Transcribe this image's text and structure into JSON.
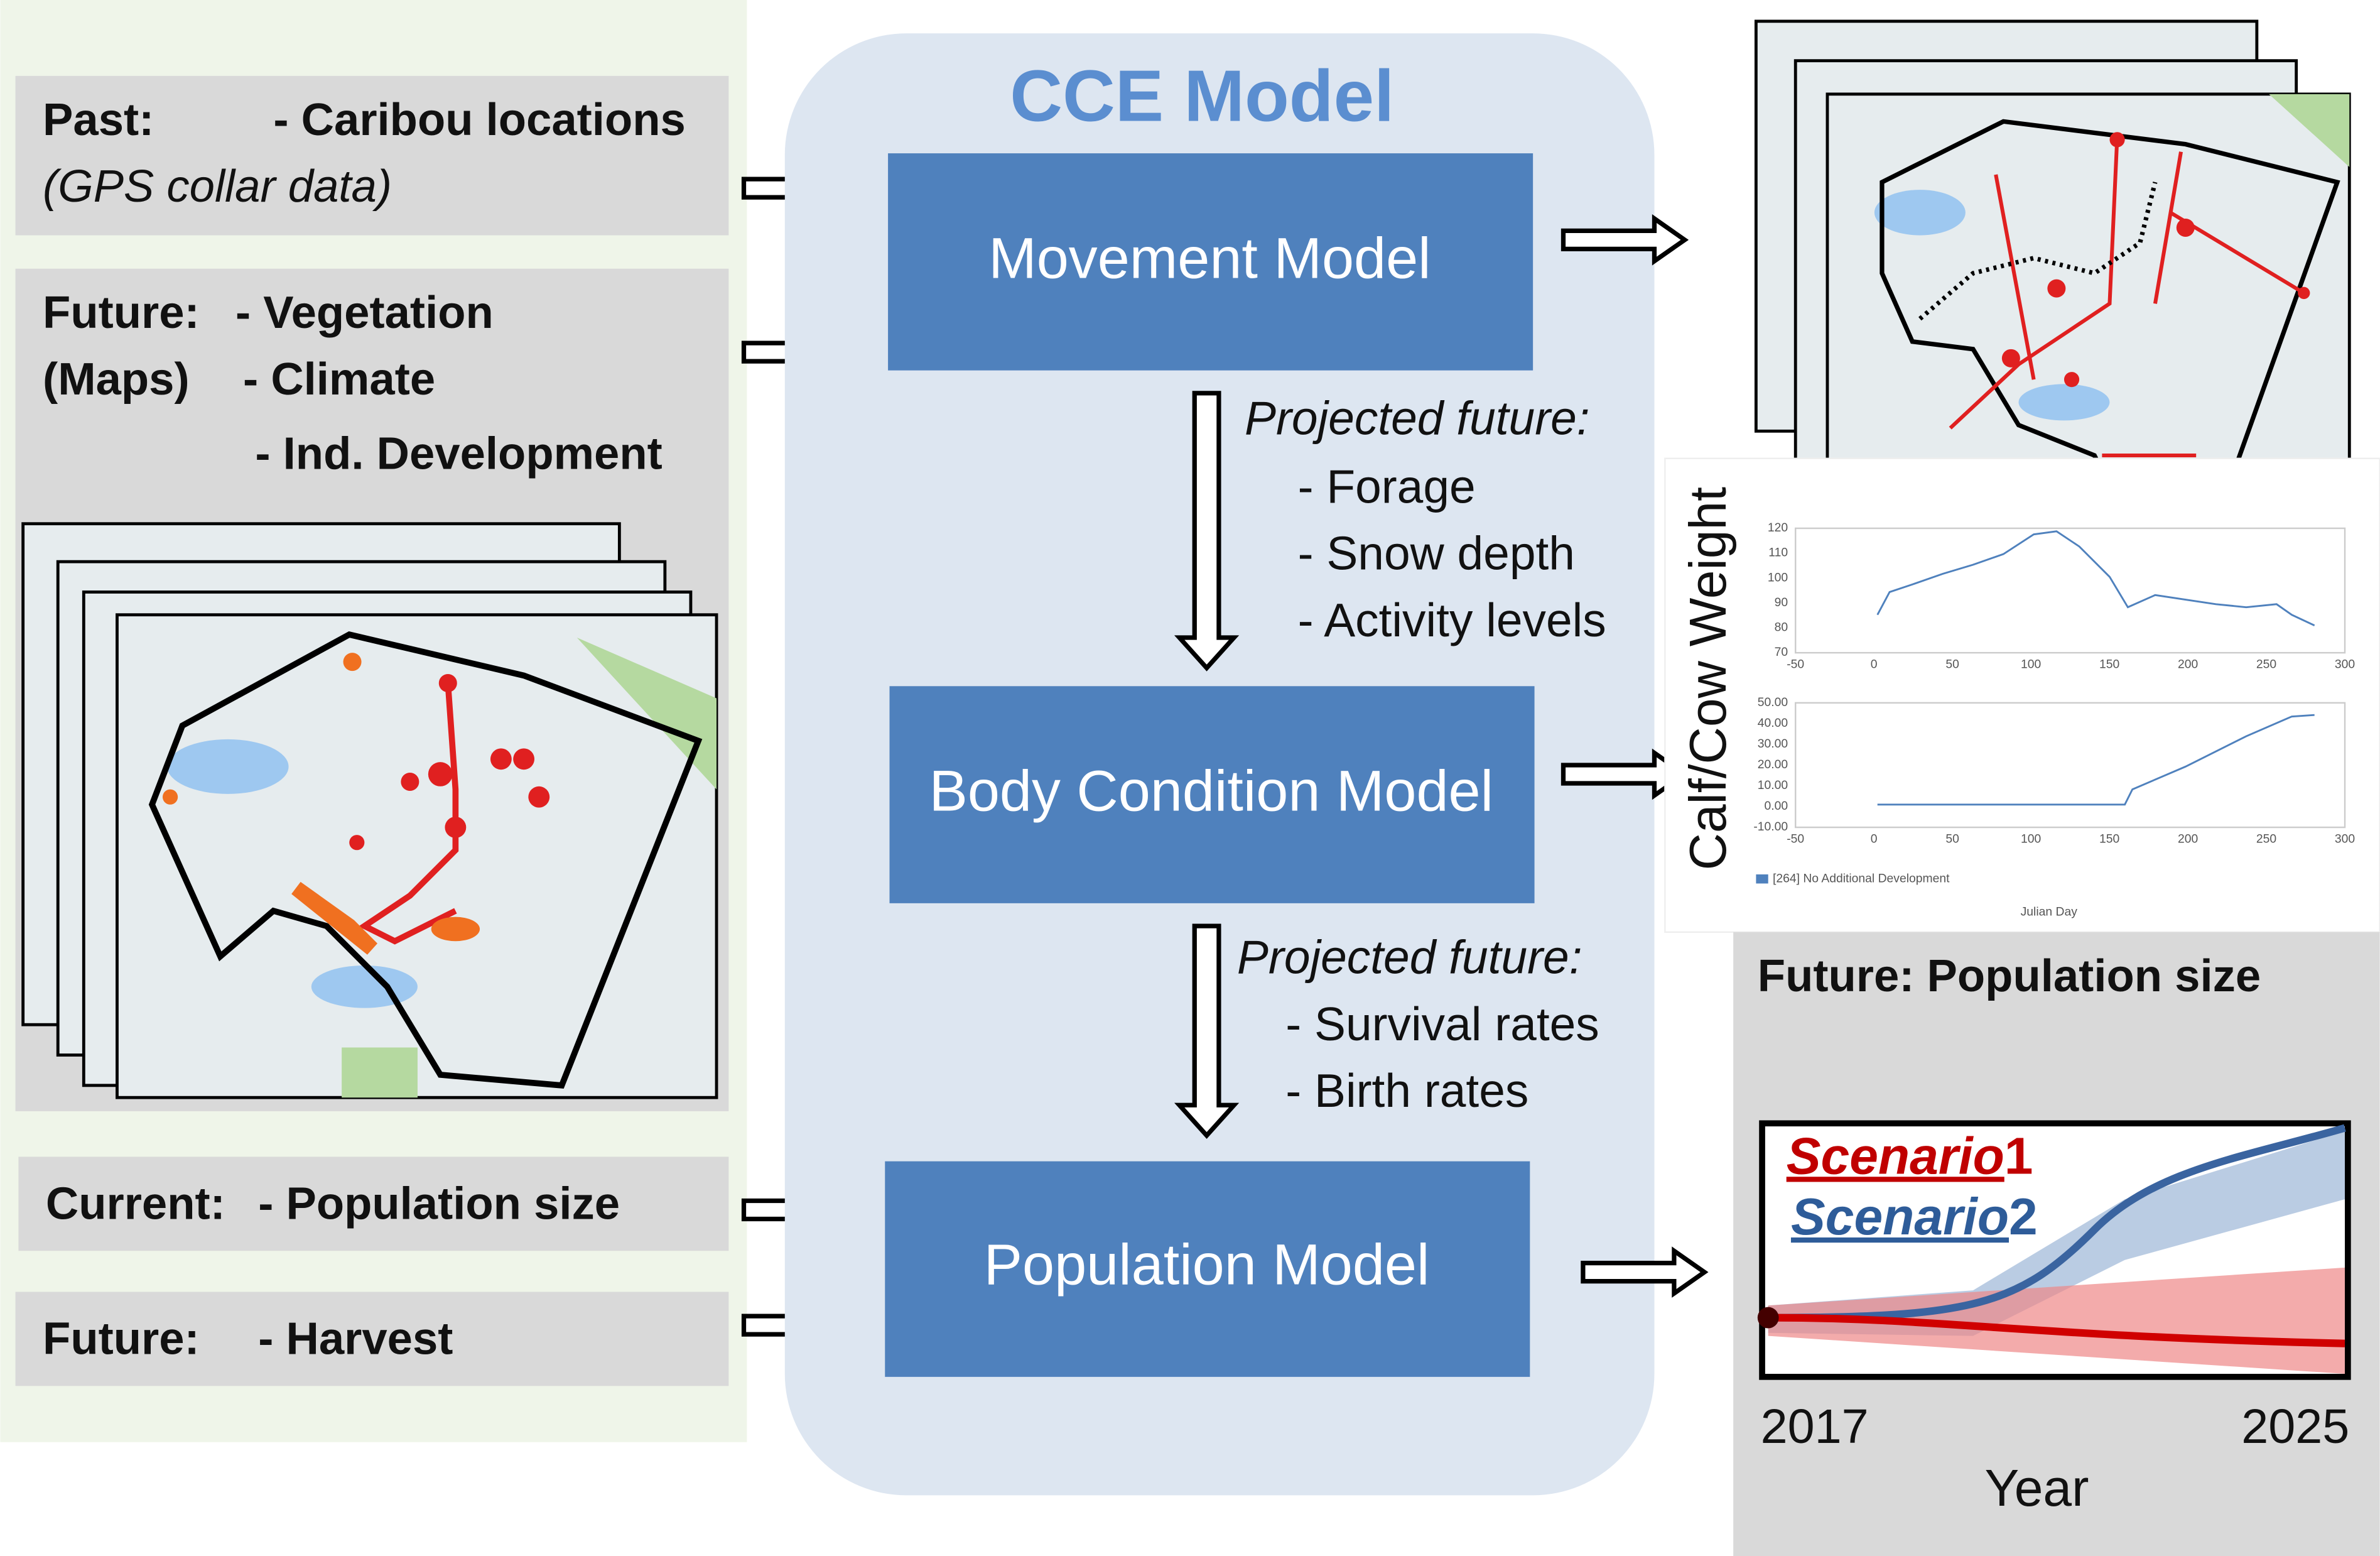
{
  "inputs": {
    "past": {
      "label": "Past:",
      "item": "- Caribou locations",
      "note": "(GPS collar data)"
    },
    "future_maps": {
      "label": "Future:",
      "sublabel": "(Maps)",
      "items": [
        "- Vegetation",
        "- Climate",
        "- Ind. Development"
      ]
    },
    "current": {
      "label": "Current:",
      "item": "- Population size"
    },
    "harvest": {
      "label": "Future:",
      "item": "- Harvest"
    }
  },
  "model": {
    "title": "CCE Model",
    "boxes": [
      "Movement Model",
      "Body Condition Model",
      "Population Model"
    ],
    "links": [
      {
        "heading": "Projected future:",
        "items": [
          "- Forage",
          "- Snow depth",
          "- Activity levels"
        ]
      },
      {
        "heading": "Projected future:",
        "items": [
          "- Survival rates",
          "- Birth rates"
        ]
      }
    ]
  },
  "weight_chart": {
    "ylabel": "Calf/Cow Weight",
    "top_yticks": [
      "120",
      "110",
      "100",
      "90",
      "80",
      "70"
    ],
    "bottom_yticks": [
      "50.00",
      "40.00",
      "30.00",
      "20.00",
      "10.00",
      "0.00",
      "-10.00"
    ],
    "xticks": [
      "-50",
      "0",
      "50",
      "100",
      "150",
      "200",
      "250",
      "300"
    ],
    "legend": "[264] No Additional Development",
    "xlabel": "Julian Day"
  },
  "population": {
    "title": "Future:  Population size",
    "scenarios": [
      {
        "name": "Scenario",
        "number": "1"
      },
      {
        "name": "Scenario",
        "number": "2"
      }
    ],
    "x_start": "2017",
    "x_end": "2025",
    "xlabel": "Year"
  }
}
